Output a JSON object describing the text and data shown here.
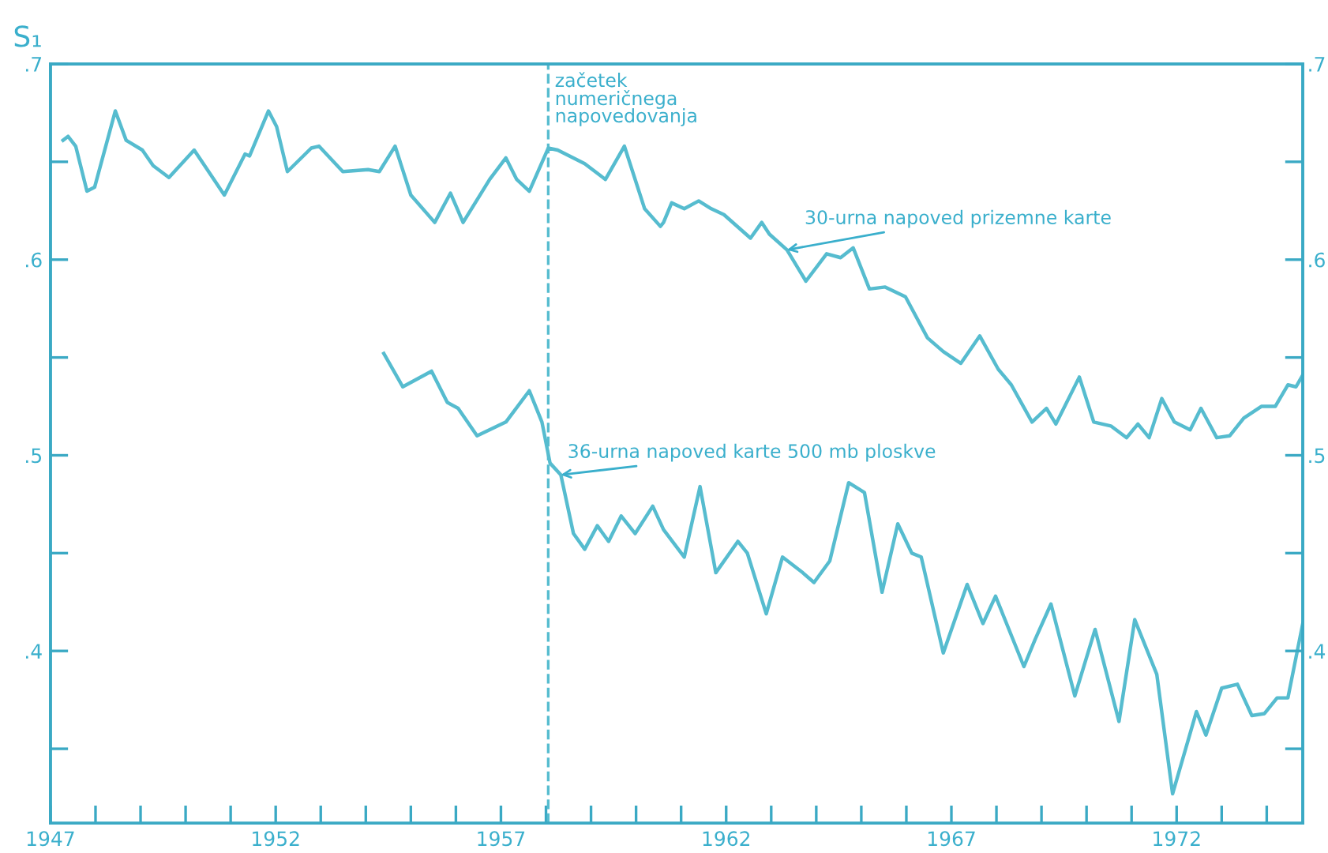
{
  "chart_data": {
    "type": "line",
    "ylabel": "S₁",
    "xlim": [
      1947,
      1974.8
    ],
    "ylim": [
      0.312,
      0.7
    ],
    "xticks": [
      {
        "value": 1947,
        "label": "1947"
      },
      {
        "value": 1948,
        "label": null
      },
      {
        "value": 1949,
        "label": null
      },
      {
        "value": 1950,
        "label": null
      },
      {
        "value": 1951,
        "label": null
      },
      {
        "value": 1952,
        "label": "1952"
      },
      {
        "value": 1953,
        "label": null
      },
      {
        "value": 1954,
        "label": null
      },
      {
        "value": 1955,
        "label": null
      },
      {
        "value": 1956,
        "label": null
      },
      {
        "value": 1957,
        "label": "1957"
      },
      {
        "value": 1958,
        "label": null
      },
      {
        "value": 1959,
        "label": null
      },
      {
        "value": 1960,
        "label": null
      },
      {
        "value": 1961,
        "label": null
      },
      {
        "value": 1962,
        "label": "1962"
      },
      {
        "value": 1963,
        "label": null
      },
      {
        "value": 1964,
        "label": null
      },
      {
        "value": 1965,
        "label": null
      },
      {
        "value": 1966,
        "label": null
      },
      {
        "value": 1967,
        "label": "1967"
      },
      {
        "value": 1968,
        "label": null
      },
      {
        "value": 1969,
        "label": null
      },
      {
        "value": 1970,
        "label": null
      },
      {
        "value": 1971,
        "label": null
      },
      {
        "value": 1972,
        "label": "1972"
      },
      {
        "value": 1973,
        "label": null
      },
      {
        "value": 1974,
        "label": null
      }
    ],
    "yticks": [
      {
        "value": 0.35,
        "label": null
      },
      {
        "value": 0.4,
        "label": ".4"
      },
      {
        "value": 0.45,
        "label": null
      },
      {
        "value": 0.5,
        "label": ".5"
      },
      {
        "value": 0.55,
        "label": null
      },
      {
        "value": 0.6,
        "label": ".6"
      },
      {
        "value": 0.65,
        "label": null
      },
      {
        "value": 0.7,
        "label": ".7"
      }
    ],
    "y2lim": [
      0.312,
      0.7
    ],
    "y2ticks": [
      {
        "value": 0.35,
        "label": null
      },
      {
        "value": 0.4,
        "label": ".4"
      },
      {
        "value": 0.45,
        "label": null
      },
      {
        "value": 0.5,
        "label": ".5"
      },
      {
        "value": 0.55,
        "label": null
      },
      {
        "value": 0.6,
        "label": ".6"
      },
      {
        "value": 0.65,
        "label": null
      },
      {
        "value": 0.7,
        "label": ".7"
      }
    ],
    "grid": false,
    "series": [
      {
        "color": "#56bccf",
        "x": [
          1947.28,
          1947.39,
          1947.56,
          1947.81,
          1947.98,
          1948.44,
          1948.68,
          1949.04,
          1949.28,
          1949.63,
          1950.19,
          1950.86,
          1951.32,
          1951.42,
          1951.84,
          1952.02,
          1952.26,
          1952.79,
          1952.96,
          1953.49,
          1954.05,
          1954.3,
          1954.65,
          1955.0,
          1955.53,
          1955.88,
          1956.16,
          1956.75,
          1957.11,
          1957.35,
          1957.63,
          1958.05,
          1958.26,
          1958.86,
          1959.32,
          1959.74,
          1960.19,
          1960.54,
          1960.61,
          1960.79,
          1961.07,
          1961.39,
          1961.67,
          1961.95,
          1962.54,
          1962.79,
          1962.96,
          1963.35,
          1963.77,
          1964.23,
          1964.54,
          1964.82,
          1965.18,
          1965.53,
          1965.98,
          1966.47,
          1966.82,
          1967.21,
          1967.63,
          1968.04,
          1968.33,
          1968.79,
          1969.11,
          1969.32,
          1969.84,
          1970.16,
          1970.54,
          1970.89,
          1971.14,
          1971.39,
          1971.67,
          1971.95,
          1972.3,
          1972.54,
          1972.89,
          1973.18,
          1973.49,
          1973.88,
          1974.19,
          1974.47,
          1974.65,
          1974.8
        ],
        "values": [
          0.661,
          0.663,
          0.658,
          0.635,
          0.637,
          0.676,
          0.661,
          0.656,
          0.648,
          0.642,
          0.656,
          0.633,
          0.654,
          0.653,
          0.676,
          0.668,
          0.645,
          0.657,
          0.658,
          0.645,
          0.646,
          0.645,
          0.658,
          0.633,
          0.619,
          0.634,
          0.619,
          0.641,
          0.652,
          0.641,
          0.635,
          0.657,
          0.656,
          0.649,
          0.641,
          0.658,
          0.626,
          0.617,
          0.619,
          0.629,
          0.626,
          0.63,
          0.626,
          0.623,
          0.611,
          0.619,
          0.613,
          0.605,
          0.589,
          0.603,
          0.601,
          0.606,
          0.585,
          0.586,
          0.581,
          0.56,
          0.553,
          0.547,
          0.561,
          0.544,
          0.536,
          0.517,
          0.524,
          0.516,
          0.54,
          0.517,
          0.515,
          0.509,
          0.516,
          0.509,
          0.529,
          0.517,
          0.513,
          0.524,
          0.509,
          0.51,
          0.519,
          0.525,
          0.525,
          0.536,
          0.535,
          0.541
        ]
      },
      {
        "color": "#56bccf",
        "x": [
          1954.4,
          1954.82,
          1955.46,
          1955.81,
          1956.05,
          1956.47,
          1957.11,
          1957.63,
          1957.91,
          1958.09,
          1958.33,
          1958.61,
          1958.86,
          1959.14,
          1959.39,
          1959.67,
          1959.98,
          1960.37,
          1960.61,
          1961.07,
          1961.42,
          1961.77,
          1962.26,
          1962.47,
          1962.89,
          1963.25,
          1963.7,
          1963.95,
          1964.3,
          1964.72,
          1965.07,
          1965.46,
          1965.81,
          1966.12,
          1966.33,
          1966.82,
          1967.35,
          1967.7,
          1967.98,
          1968.61,
          1968.86,
          1969.21,
          1969.74,
          1970.19,
          1970.72,
          1971.07,
          1971.56,
          1971.91,
          1972.44,
          1972.65,
          1973.0,
          1973.35,
          1973.67,
          1973.95,
          1974.23,
          1974.47,
          1974.8
        ],
        "values": [
          0.552,
          0.535,
          0.543,
          0.527,
          0.524,
          0.51,
          0.517,
          0.533,
          0.517,
          0.496,
          0.49,
          0.46,
          0.452,
          0.464,
          0.456,
          0.469,
          0.46,
          0.474,
          0.462,
          0.448,
          0.484,
          0.44,
          0.456,
          0.45,
          0.419,
          0.448,
          0.44,
          0.435,
          0.446,
          0.486,
          0.481,
          0.43,
          0.465,
          0.45,
          0.448,
          0.399,
          0.434,
          0.414,
          0.428,
          0.392,
          0.406,
          0.424,
          0.377,
          0.411,
          0.364,
          0.416,
          0.388,
          0.327,
          0.369,
          0.357,
          0.381,
          0.383,
          0.367,
          0.368,
          0.376,
          0.376,
          0.414
        ]
      }
    ],
    "ref_lines": [
      {
        "axis": "x",
        "value": 1958.05,
        "label": "začetek\nnumeričnega\nnapovedovanja",
        "color": "#56bccf",
        "line_style": "dashed"
      }
    ],
    "annotations": [
      {
        "text": "30-urna napoved prizemne karte",
        "x": 1963.35,
        "y": 0.605
      },
      {
        "text": "36-urna napoved karte 500 mb ploskve",
        "x": 1958.33,
        "y": 0.49
      }
    ]
  }
}
